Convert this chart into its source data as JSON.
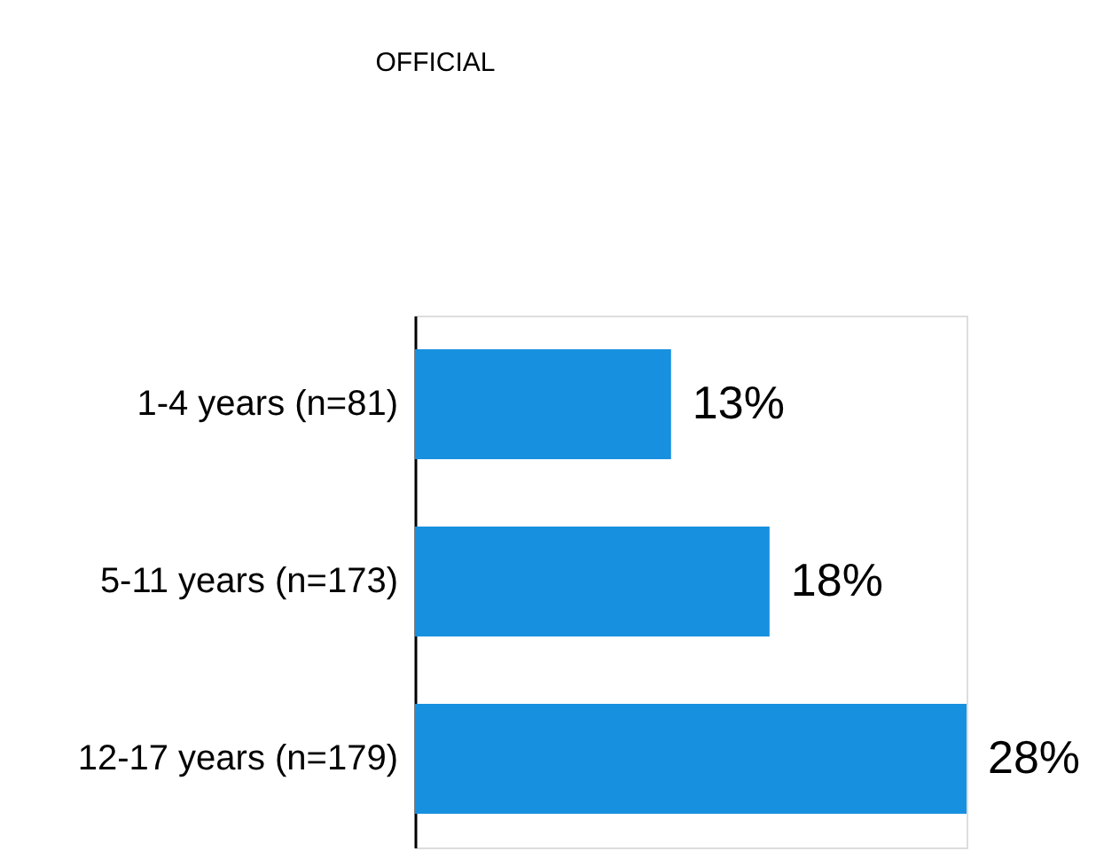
{
  "chart_data": {
    "type": "bar",
    "orientation": "horizontal",
    "title": "OFFICIAL",
    "categories": [
      "1-4 years (n=81)",
      "5-11 years (n=173)",
      "12-17 years (n=179)"
    ],
    "value_labels": [
      "13%",
      "18%",
      "28%"
    ],
    "values": [
      13,
      18,
      28
    ],
    "color": "#1890e0",
    "grid": false
  }
}
